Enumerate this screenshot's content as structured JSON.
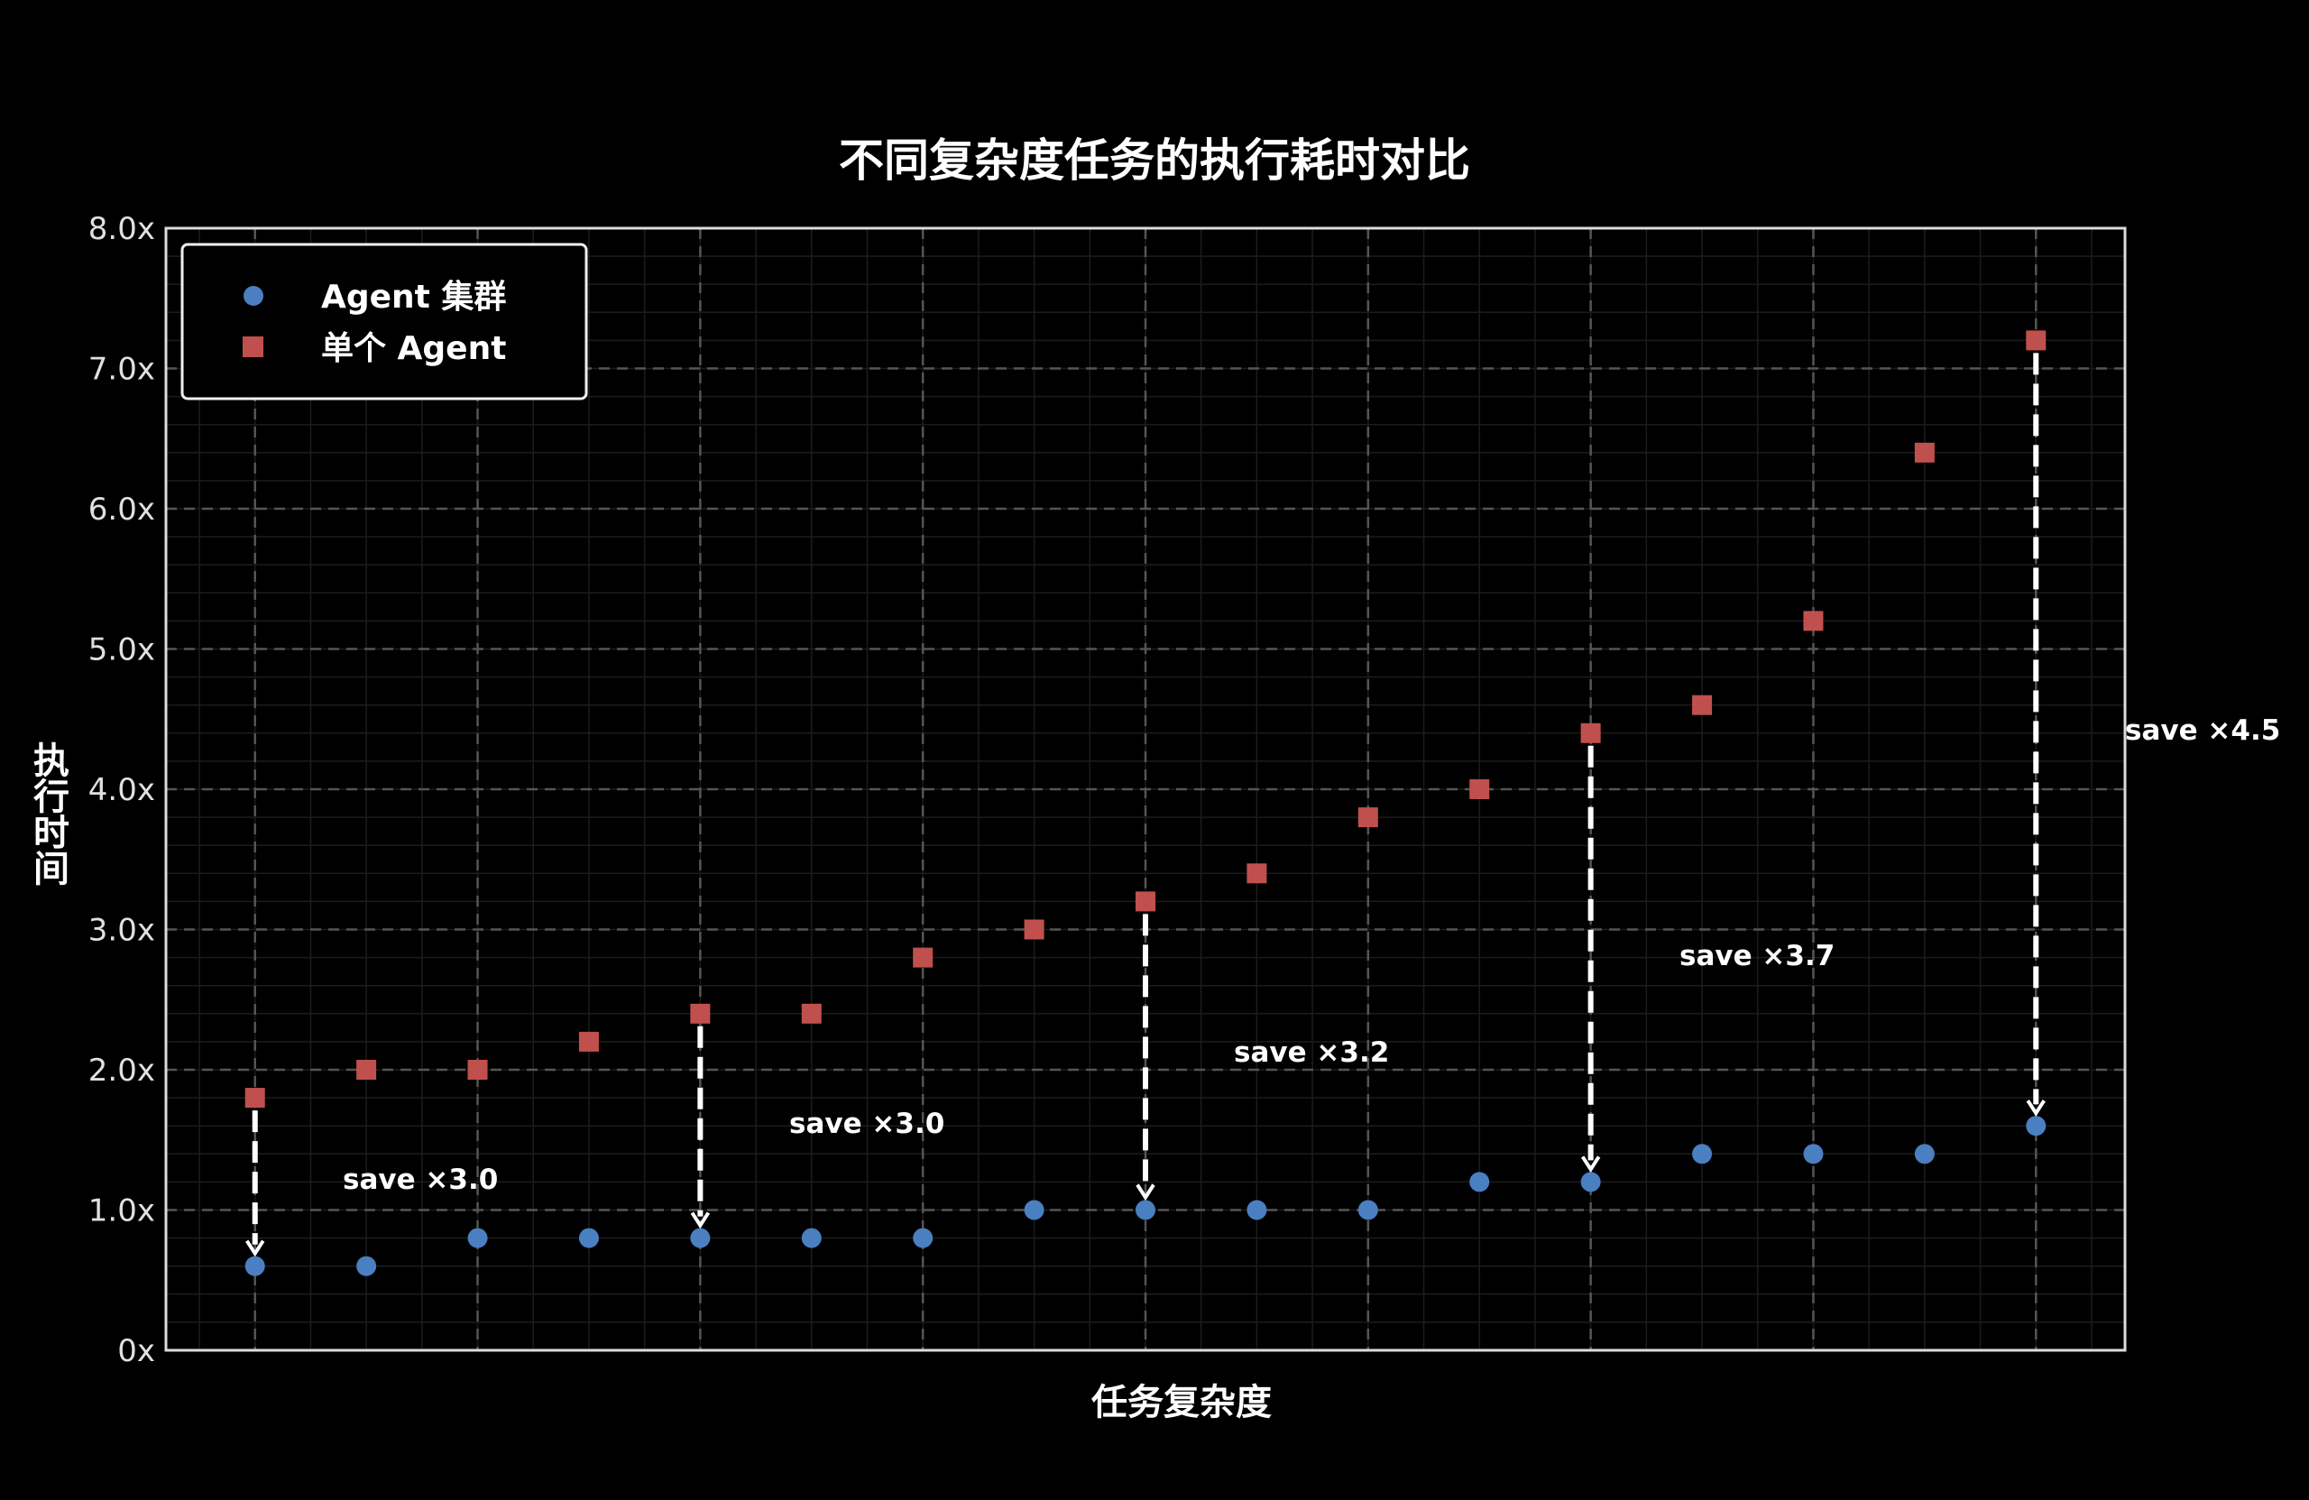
{
  "chart_data": {
    "type": "scatter",
    "title": "不同复杂度任务的执行耗时对比",
    "xlabel": "任务复杂度",
    "ylabel": "执行时间",
    "ylim": [
      0,
      8
    ],
    "yticks": [
      0,
      1,
      2,
      3,
      4,
      5,
      6,
      7,
      8
    ],
    "ytick_labels": [
      "0x",
      "1.0x",
      "2.0x",
      "3.0x",
      "4.0x",
      "5.0x",
      "6.0x",
      "7.0x",
      "8.0x"
    ],
    "x": [
      0,
      1,
      2,
      3,
      4,
      5,
      6,
      7,
      8,
      9,
      10,
      11,
      12,
      13,
      14,
      15,
      16
    ],
    "xlim": [
      -0.8,
      16.8
    ],
    "x_tick_labels_shown": false,
    "grid": true,
    "legend_position": "top-left",
    "series": [
      {
        "name": "Agent 集群",
        "marker": "circle",
        "color": "#4a7fc1",
        "values": [
          0.6,
          0.6,
          0.8,
          0.8,
          0.8,
          0.8,
          0.8,
          1.0,
          1.0,
          1.0,
          1.0,
          1.2,
          1.2,
          1.4,
          1.4,
          1.4,
          1.6
        ]
      },
      {
        "name": "单个 Agent",
        "marker": "square",
        "color": "#c0504d",
        "values": [
          1.8,
          2.0,
          2.0,
          2.2,
          2.4,
          2.4,
          2.8,
          3.0,
          3.2,
          3.4,
          3.8,
          4.0,
          4.4,
          4.6,
          5.2,
          6.4,
          7.2
        ]
      }
    ],
    "annotations": [
      {
        "x": 0,
        "text": "save ×3.0"
      },
      {
        "x": 4,
        "text": "save ×3.0"
      },
      {
        "x": 8,
        "text": "save ×3.2"
      },
      {
        "x": 12,
        "text": "save ×3.7"
      },
      {
        "x": 16,
        "text": "save ×4.5"
      }
    ],
    "background": "#000000",
    "foreground": "#ffffff"
  }
}
